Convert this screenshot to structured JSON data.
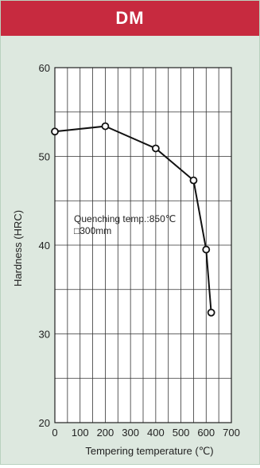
{
  "banner": {
    "title": "DM"
  },
  "colors": {
    "banner": "#c72a3f",
    "panel": "#dde8df",
    "plot": "#ffffff",
    "line": "#111111"
  },
  "chart_data": {
    "type": "line",
    "title": "DM",
    "xlabel": "Tempering temperature (℃)",
    "ylabel": "Hardness (HRC)",
    "xlim": [
      0,
      700
    ],
    "ylim": [
      20,
      60
    ],
    "xticks": [
      0,
      100,
      200,
      300,
      400,
      500,
      600,
      700
    ],
    "yticks": [
      20,
      30,
      40,
      50,
      60
    ],
    "grid": true,
    "annotation": [
      "Quenching temp.:850℃",
      "□300mm"
    ],
    "series": [
      {
        "x": [
          0,
          200,
          400,
          550,
          600,
          620
        ],
        "y": [
          52.8,
          53.4,
          50.9,
          47.3,
          39.5,
          32.4
        ]
      }
    ]
  }
}
